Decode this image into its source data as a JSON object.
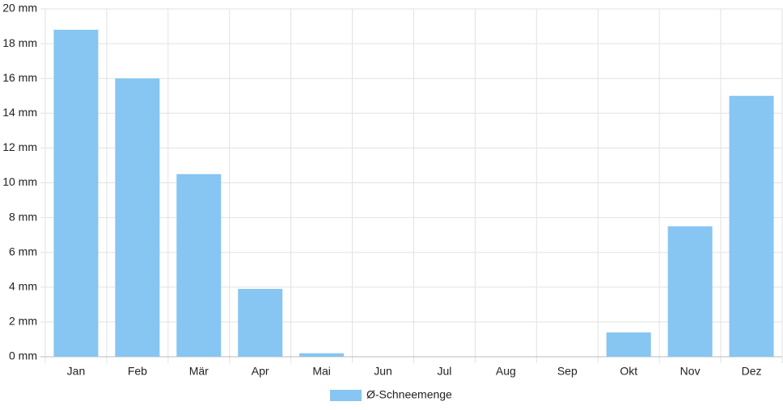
{
  "chart_data": {
    "type": "bar",
    "categories": [
      "Jan",
      "Feb",
      "Mär",
      "Apr",
      "Mai",
      "Jun",
      "Jul",
      "Aug",
      "Sep",
      "Okt",
      "Nov",
      "Dez"
    ],
    "series": [
      {
        "name": "Ø-Schneemenge",
        "color": "#87c5f2",
        "values": [
          18.8,
          16,
          10.5,
          3.9,
          0.2,
          0,
          0,
          0,
          0,
          1.4,
          7.5,
          15
        ]
      }
    ],
    "ylim": [
      0,
      20
    ],
    "yticks": [
      {
        "value": 0,
        "label": "0 mm"
      },
      {
        "value": 2,
        "label": "2 mm"
      },
      {
        "value": 4,
        "label": "4 mm"
      },
      {
        "value": 6,
        "label": "6 mm"
      },
      {
        "value": 8,
        "label": "8 mm"
      },
      {
        "value": 10,
        "label": "10 mm"
      },
      {
        "value": 12,
        "label": "12 mm"
      },
      {
        "value": 14,
        "label": "14 mm"
      },
      {
        "value": 16,
        "label": "16 mm"
      },
      {
        "value": 18,
        "label": "18 mm"
      },
      {
        "value": 20,
        "label": "20 mm"
      }
    ],
    "grid": true,
    "legend": "bottom"
  }
}
